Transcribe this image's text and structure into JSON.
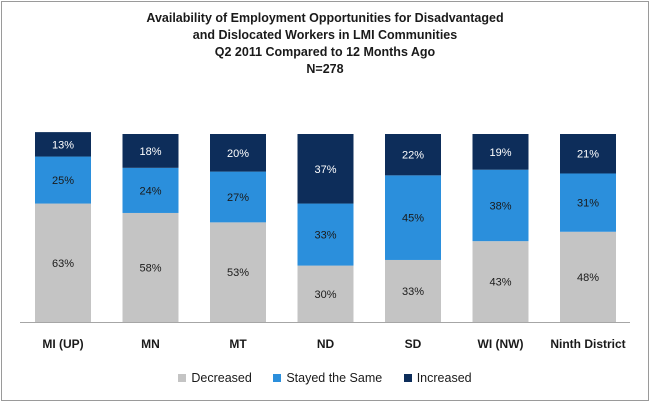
{
  "chart_data": {
    "type": "bar",
    "stacked": true,
    "title_lines": [
      "Availability of Employment Opportunities for Disadvantaged",
      "and Dislocated Workers in LMI Communities",
      "Q2 2011 Compared to 12 Months Ago",
      "N=278"
    ],
    "categories": [
      "MI (UP)",
      "MN",
      "MT",
      "ND",
      "SD",
      "WI (NW)",
      "Ninth District"
    ],
    "series": [
      {
        "name": "Decreased",
        "color": "#c4c4c4",
        "values": [
          63,
          58,
          53,
          30,
          33,
          43,
          48
        ],
        "labels": [
          "63%",
          "58%",
          "53%",
          "30%",
          "33%",
          "43%",
          "48%"
        ]
      },
      {
        "name": "Stayed the Same",
        "color": "#2b8fdc",
        "values": [
          25,
          24,
          27,
          33,
          45,
          38,
          31
        ],
        "labels": [
          "25%",
          "24%",
          "27%",
          "33%",
          "45%",
          "38%",
          "31%"
        ]
      },
      {
        "name": "Increased",
        "color": "#0d2d5a",
        "values": [
          13,
          18,
          20,
          37,
          22,
          19,
          21
        ],
        "labels": [
          "13%",
          "18%",
          "20%",
          "37%",
          "22%",
          "19%",
          "21%"
        ]
      }
    ],
    "legend_position": "bottom",
    "gridlines": false
  }
}
